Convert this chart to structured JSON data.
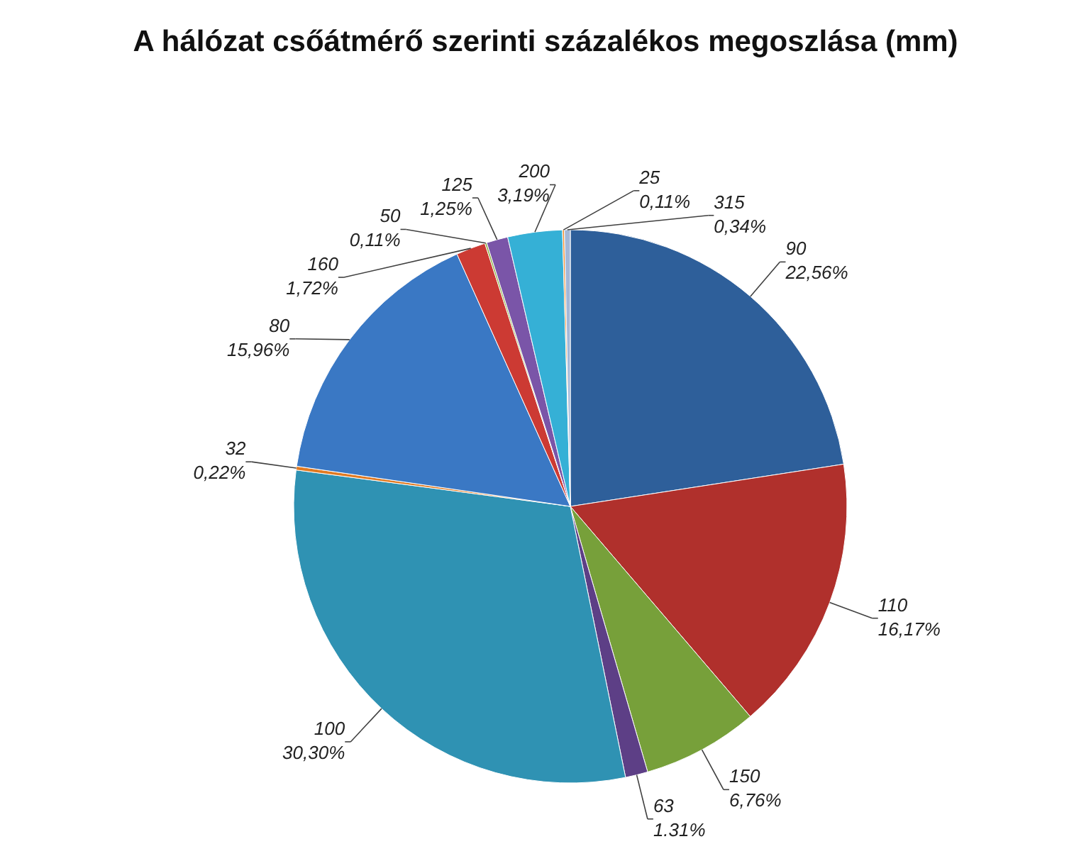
{
  "chart_data": {
    "type": "pie",
    "title": "A hálózat csőátmérő szerinti százalékos megoszlása (mm)",
    "categories": [
      "90",
      "110",
      "150",
      "63",
      "100",
      "32",
      "80",
      "160",
      "50",
      "125",
      "200",
      "25",
      "315"
    ],
    "values": [
      22.56,
      16.17,
      6.76,
      1.31,
      30.3,
      0.22,
      15.96,
      1.72,
      0.11,
      1.25,
      3.19,
      0.11,
      0.34
    ],
    "value_labels": [
      "22,56%",
      "16,17%",
      "6,76%",
      "1.31%",
      "30,30%",
      "0,22%",
      "15,96%",
      "1,72%",
      "0,11%",
      "1,25%",
      "3,19%",
      "0,11%",
      "0,34%"
    ],
    "colors": [
      "#2e5f9a",
      "#b0302c",
      "#77a03a",
      "#5d3f86",
      "#2f92b3",
      "#e07a22",
      "#3a78c4",
      "#cc3a33",
      "#8fb046",
      "#7a55a8",
      "#35b0d6",
      "#f08a2a",
      "#a4b8d8"
    ],
    "legend": false
  }
}
